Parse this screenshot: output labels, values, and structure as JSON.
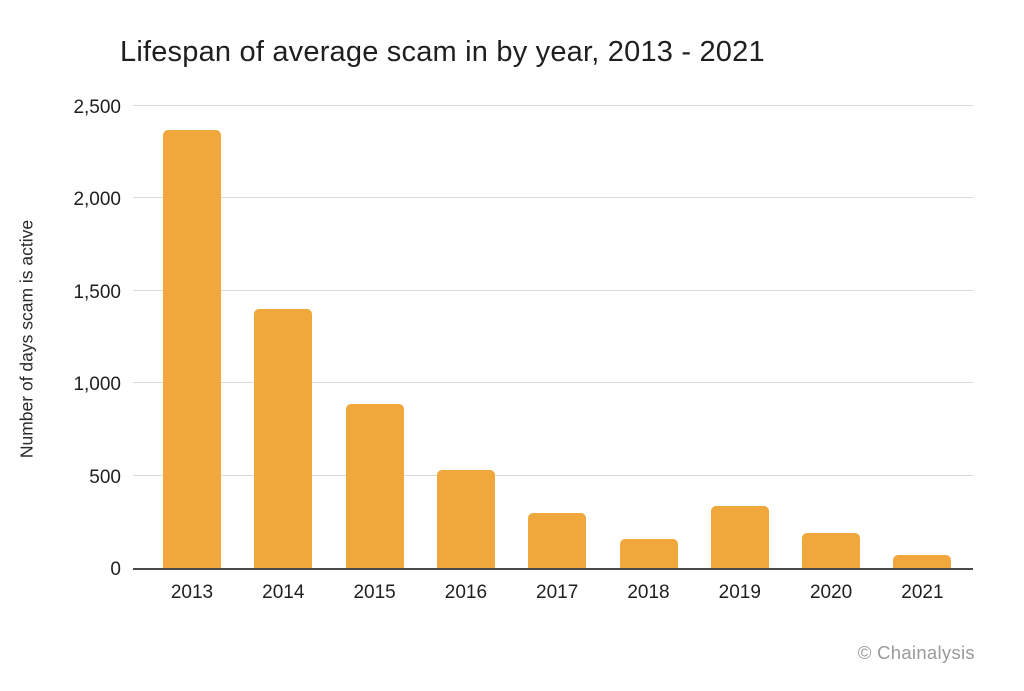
{
  "title": "Lifespan of average scam in by year, 2013 - 2021",
  "credit": "© Chainalysis",
  "chart_data": {
    "type": "bar",
    "title": "Lifespan of average scam in by year, 2013 - 2021",
    "xlabel": "",
    "ylabel": "Number of days scam is active",
    "categories": [
      "2013",
      "2014",
      "2015",
      "2016",
      "2017",
      "2018",
      "2019",
      "2020",
      "2021"
    ],
    "values": [
      2369,
      1404,
      890,
      532,
      297,
      156,
      335,
      192,
      70
    ],
    "ylim": [
      0,
      2500
    ],
    "yticks": [
      {
        "value": 0,
        "label": "0"
      },
      {
        "value": 500,
        "label": "500"
      },
      {
        "value": 1000,
        "label": "1,000"
      },
      {
        "value": 1500,
        "label": "1,500"
      },
      {
        "value": 2000,
        "label": "2,000"
      },
      {
        "value": 2500,
        "label": "2,500"
      }
    ],
    "grid": true,
    "legend_position": "none",
    "colors": {
      "bar": "#F0A83C",
      "gridline": "#D9D9D9",
      "axis_line": "#4A4A4A",
      "text": "#1F1F1F",
      "credit_text": "#9A9A9A"
    }
  }
}
